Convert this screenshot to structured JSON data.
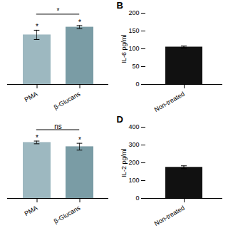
{
  "chart_data": [
    {
      "type": "bar",
      "categories": [
        "PMA",
        "β-Glucans"
      ],
      "values": [
        160,
        185
      ],
      "errors": [
        15,
        5
      ],
      "colors": [
        "#9db8c0",
        "#7a9ca5"
      ],
      "ylim": [
        0,
        230
      ],
      "tick_labels": "x",
      "significance": [
        "*",
        "*"
      ],
      "significance_between": "*"
    },
    {
      "type": "bar",
      "title": "B",
      "categories": [
        "Non-treated"
      ],
      "values": [
        105
      ],
      "errors": [
        3
      ],
      "colors": [
        "#111111"
      ],
      "ylabel": "IL-6 pg/ml",
      "ylim": [
        0,
        200
      ],
      "yticks": [
        0,
        50,
        100,
        150,
        200
      ]
    },
    {
      "type": "bar",
      "categories": [
        "PMA",
        "β-Glucans"
      ],
      "values": [
        330,
        305
      ],
      "errors": [
        8,
        20
      ],
      "colors": [
        "#9db8c0",
        "#7a9ca5"
      ],
      "ylim": [
        0,
        420
      ],
      "tick_labels": "x",
      "significance": [
        "*",
        "*"
      ],
      "significance_between": "ns"
    },
    {
      "type": "bar",
      "title": "D",
      "categories": [
        "Non-treated"
      ],
      "values": [
        175
      ],
      "errors": [
        8
      ],
      "colors": [
        "#111111"
      ],
      "ylabel": "IL-2 pg/ml",
      "ylim": [
        0,
        400
      ],
      "yticks": [
        0,
        100,
        200,
        300,
        400
      ]
    }
  ]
}
